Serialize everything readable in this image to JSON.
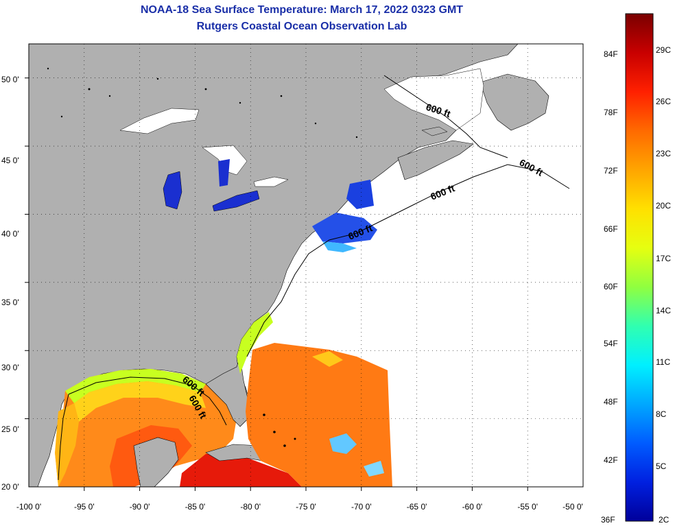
{
  "header": {
    "title": "NOAA-18 Sea Surface Temperature:  March 17, 2022 0323 GMT",
    "subtitle": "Rutgers Coastal Ocean Observation Lab"
  },
  "axes": {
    "lon_labels": [
      "-100 0'",
      "-95 0'",
      "-90 0'",
      "-85 0'",
      "-80 0'",
      "-75 0'",
      "-70 0'",
      "-65 0'",
      "-60 0'",
      "-55 0'",
      "-50 0'"
    ],
    "lat_labels": [
      "20 0'",
      "25 0'",
      "30 0'",
      "35 0'",
      "40 0'",
      "45 0'",
      "50 0'"
    ],
    "lon_range": [
      -100,
      -50
    ],
    "lat_range": [
      20,
      52.5
    ]
  },
  "contours": {
    "label": "600 ft",
    "count": 6
  },
  "colorbar": {
    "fahrenheit_labels": [
      "84F",
      "78F",
      "72F",
      "66F",
      "60F",
      "54F",
      "48F",
      "42F",
      "36F"
    ],
    "celsius_labels": [
      "29C",
      "26C",
      "23C",
      "20C",
      "17C",
      "14C",
      "11C",
      "8C",
      "5C",
      "2C"
    ],
    "colors": [
      "#7a0000",
      "#c80000",
      "#ff2000",
      "#ff6a00",
      "#ffa500",
      "#ffe000",
      "#e6ff10",
      "#90ff40",
      "#30ffb0",
      "#00f0ff",
      "#00a8ff",
      "#005cff",
      "#0020e0",
      "#00009a"
    ]
  },
  "legend_colors": {
    "land": "#b0b0b0",
    "water_no_data": "#ffffff"
  }
}
